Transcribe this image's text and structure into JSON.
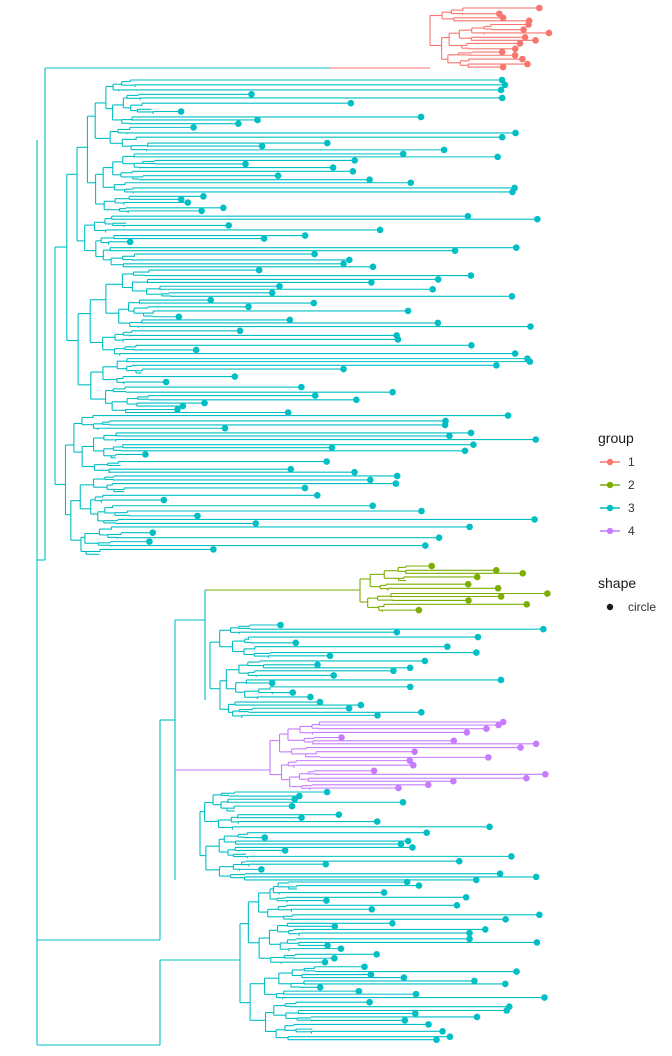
{
  "tree": {
    "groups": [
      {
        "id": "1",
        "color": "#F8766D"
      },
      {
        "id": "2",
        "color": "#7CAE00"
      },
      {
        "id": "3",
        "color": "#00BFC4"
      },
      {
        "id": "4",
        "color": "#C77CFF"
      }
    ],
    "tip_shape": "circle"
  },
  "legend": {
    "group_title": "group",
    "group_items": [
      {
        "label": "1",
        "color": "#F8766D"
      },
      {
        "label": "2",
        "color": "#7CAE00"
      },
      {
        "label": "3",
        "color": "#00BFC4"
      },
      {
        "label": "4",
        "color": "#C77CFF"
      }
    ],
    "shape_title": "shape",
    "shape_items": [
      {
        "label": "circle"
      }
    ]
  }
}
